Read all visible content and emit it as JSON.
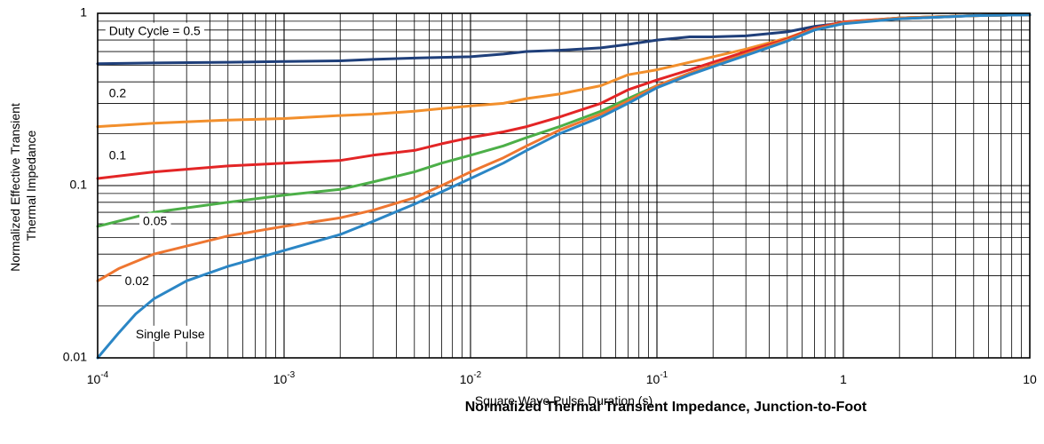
{
  "chart_data": {
    "type": "line",
    "title": "Normalized Thermal Transient Impedance, Junction-to-Foot",
    "xlabel": "Square Wave Pulse Duration (s)",
    "ylabel_lines": [
      "Normalized Effective Transient",
      "Thermal Impedance"
    ],
    "x_scale": "log",
    "y_scale": "log",
    "xlim": [
      0.0001,
      10
    ],
    "ylim": [
      0.01,
      1
    ],
    "grid": true,
    "x_ticks": [
      {
        "value": 0.0001,
        "base": "10",
        "exp": "-4"
      },
      {
        "value": 0.001,
        "base": "10",
        "exp": "-3"
      },
      {
        "value": 0.01,
        "base": "10",
        "exp": "-2"
      },
      {
        "value": 0.1,
        "base": "10",
        "exp": "-1"
      },
      {
        "value": 1,
        "base": "1",
        "exp": ""
      },
      {
        "value": 10,
        "base": "10",
        "exp": ""
      }
    ],
    "y_ticks": [
      {
        "value": 0.01,
        "label": "0.01"
      },
      {
        "value": 0.1,
        "label": "0.1"
      },
      {
        "value": 1,
        "label": "1"
      }
    ],
    "series": [
      {
        "name": "Duty Cycle = 0.5",
        "color": "#1f3f7a",
        "label_at": [
          0.000115,
          0.78
        ],
        "x": [
          0.0001,
          0.0002,
          0.0005,
          0.001,
          0.002,
          0.003,
          0.005,
          0.007,
          0.01,
          0.015,
          0.02,
          0.03,
          0.05,
          0.07,
          0.1,
          0.15,
          0.2,
          0.3,
          0.5,
          0.7,
          1,
          2,
          5,
          10
        ],
        "y": [
          0.51,
          0.515,
          0.52,
          0.525,
          0.53,
          0.54,
          0.55,
          0.555,
          0.56,
          0.58,
          0.6,
          0.61,
          0.63,
          0.66,
          0.7,
          0.73,
          0.73,
          0.74,
          0.78,
          0.84,
          0.88,
          0.93,
          0.97,
          0.98
        ]
      },
      {
        "name": "0.2",
        "color": "#f28f2c",
        "label_at": [
          0.000115,
          0.34
        ],
        "x": [
          0.0001,
          0.0002,
          0.0005,
          0.001,
          0.002,
          0.003,
          0.005,
          0.007,
          0.01,
          0.015,
          0.02,
          0.03,
          0.05,
          0.07,
          0.1,
          0.15,
          0.2,
          0.3,
          0.5,
          0.7,
          1,
          2,
          5,
          10
        ],
        "y": [
          0.22,
          0.23,
          0.24,
          0.245,
          0.255,
          0.26,
          0.27,
          0.28,
          0.29,
          0.3,
          0.32,
          0.34,
          0.38,
          0.44,
          0.47,
          0.52,
          0.56,
          0.62,
          0.72,
          0.82,
          0.89,
          0.94,
          0.97,
          0.98
        ]
      },
      {
        "name": "0.1",
        "color": "#e32526",
        "label_at": [
          0.000115,
          0.148
        ],
        "x": [
          0.0001,
          0.0002,
          0.0005,
          0.001,
          0.002,
          0.003,
          0.005,
          0.007,
          0.01,
          0.015,
          0.02,
          0.03,
          0.05,
          0.07,
          0.1,
          0.15,
          0.2,
          0.3,
          0.5,
          0.7,
          1,
          2,
          5,
          10
        ],
        "y": [
          0.11,
          0.12,
          0.13,
          0.135,
          0.14,
          0.15,
          0.16,
          0.175,
          0.19,
          0.205,
          0.22,
          0.25,
          0.3,
          0.36,
          0.41,
          0.47,
          0.52,
          0.6,
          0.71,
          0.82,
          0.89,
          0.94,
          0.97,
          0.98
        ]
      },
      {
        "name": "0.05",
        "color": "#4caf48",
        "label_at": [
          0.000175,
          0.0615
        ],
        "x": [
          0.0001,
          0.0002,
          0.0005,
          0.001,
          0.002,
          0.003,
          0.005,
          0.007,
          0.01,
          0.015,
          0.02,
          0.03,
          0.05,
          0.07,
          0.1,
          0.15,
          0.2,
          0.3,
          0.5,
          0.7,
          1,
          2,
          5,
          10
        ],
        "y": [
          0.058,
          0.07,
          0.08,
          0.088,
          0.095,
          0.105,
          0.12,
          0.135,
          0.15,
          0.17,
          0.19,
          0.22,
          0.27,
          0.32,
          0.38,
          0.45,
          0.5,
          0.58,
          0.7,
          0.81,
          0.88,
          0.94,
          0.97,
          0.98
        ]
      },
      {
        "name": "0.02",
        "color": "#ee7631",
        "label_at": [
          0.00014,
          0.0276
        ],
        "x": [
          0.0001,
          0.00013,
          0.0002,
          0.0005,
          0.001,
          0.002,
          0.003,
          0.005,
          0.007,
          0.01,
          0.015,
          0.02,
          0.03,
          0.05,
          0.07,
          0.1,
          0.15,
          0.2,
          0.3,
          0.5,
          0.7,
          1,
          2,
          5,
          10
        ],
        "y": [
          0.028,
          0.033,
          0.04,
          0.051,
          0.058,
          0.065,
          0.072,
          0.085,
          0.1,
          0.12,
          0.145,
          0.17,
          0.21,
          0.26,
          0.31,
          0.38,
          0.45,
          0.5,
          0.58,
          0.7,
          0.81,
          0.88,
          0.94,
          0.97,
          0.98
        ]
      },
      {
        "name": "Single Pulse",
        "color": "#2b86c5",
        "label_at": [
          0.00016,
          0.0136
        ],
        "x": [
          0.0001,
          0.00013,
          0.00016,
          0.0002,
          0.0003,
          0.0005,
          0.001,
          0.002,
          0.003,
          0.005,
          0.007,
          0.01,
          0.015,
          0.02,
          0.03,
          0.05,
          0.07,
          0.1,
          0.15,
          0.2,
          0.3,
          0.5,
          0.7,
          1,
          2,
          5,
          10
        ],
        "y": [
          0.01,
          0.014,
          0.018,
          0.022,
          0.028,
          0.034,
          0.042,
          0.052,
          0.062,
          0.078,
          0.092,
          0.11,
          0.135,
          0.16,
          0.2,
          0.25,
          0.3,
          0.37,
          0.44,
          0.49,
          0.57,
          0.69,
          0.8,
          0.87,
          0.93,
          0.97,
          0.98
        ]
      }
    ]
  }
}
